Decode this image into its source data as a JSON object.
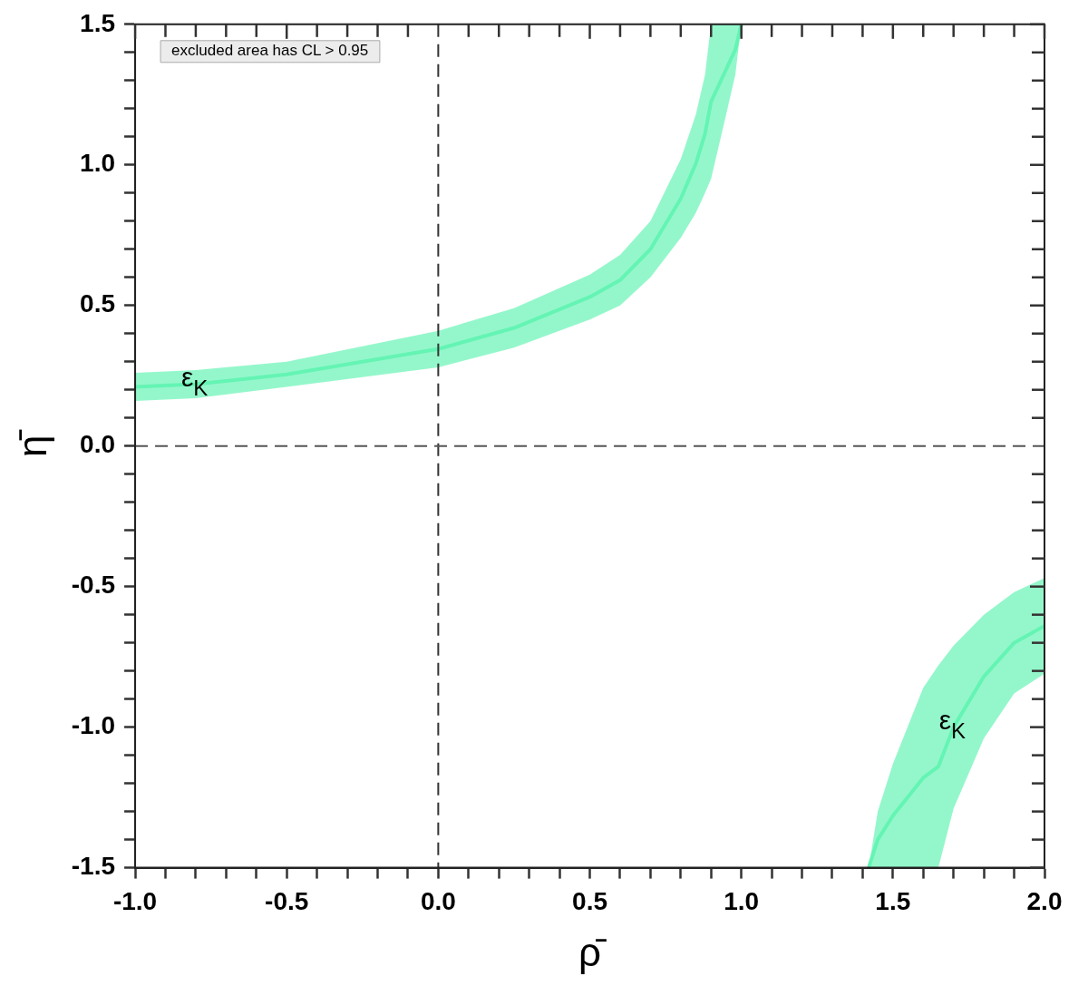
{
  "chart_data": {
    "type": "line",
    "xlabel": "ρ̄",
    "ylabel": "η̄",
    "xlim": [
      -1,
      2
    ],
    "ylim": [
      -1.5,
      1.5
    ],
    "xticks": [
      {
        "value": -1,
        "label": "-1.0"
      },
      {
        "value": -0.9,
        "label": null
      },
      {
        "value": -0.8,
        "label": null
      },
      {
        "value": -0.7,
        "label": null
      },
      {
        "value": -0.6,
        "label": null
      },
      {
        "value": -0.5,
        "label": "-0.5"
      },
      {
        "value": -0.4,
        "label": null
      },
      {
        "value": -0.3,
        "label": null
      },
      {
        "value": -0.2,
        "label": null
      },
      {
        "value": -0.1,
        "label": null
      },
      {
        "value": 0,
        "label": "0.0"
      },
      {
        "value": 0.1,
        "label": null
      },
      {
        "value": 0.2,
        "label": null
      },
      {
        "value": 0.3,
        "label": null
      },
      {
        "value": 0.4,
        "label": null
      },
      {
        "value": 0.5,
        "label": "0.5"
      },
      {
        "value": 0.6,
        "label": null
      },
      {
        "value": 0.7,
        "label": null
      },
      {
        "value": 0.8,
        "label": null
      },
      {
        "value": 0.9,
        "label": null
      },
      {
        "value": 1,
        "label": "1.0"
      },
      {
        "value": 1.1,
        "label": null
      },
      {
        "value": 1.2,
        "label": null
      },
      {
        "value": 1.3,
        "label": null
      },
      {
        "value": 1.4,
        "label": null
      },
      {
        "value": 1.5,
        "label": "1.5"
      },
      {
        "value": 1.6,
        "label": null
      },
      {
        "value": 1.7,
        "label": null
      },
      {
        "value": 1.8,
        "label": null
      },
      {
        "value": 1.9,
        "label": null
      },
      {
        "value": 2,
        "label": "2.0"
      }
    ],
    "yticks": [
      {
        "value": -1.5,
        "label": "-1.5"
      },
      {
        "value": -1.4,
        "label": null
      },
      {
        "value": -1.3,
        "label": null
      },
      {
        "value": -1.2,
        "label": null
      },
      {
        "value": -1.1,
        "label": null
      },
      {
        "value": -1,
        "label": "-1.0"
      },
      {
        "value": -0.9,
        "label": null
      },
      {
        "value": -0.8,
        "label": null
      },
      {
        "value": -0.7,
        "label": null
      },
      {
        "value": -0.6,
        "label": null
      },
      {
        "value": -0.5,
        "label": "-0.5"
      },
      {
        "value": -0.4,
        "label": null
      },
      {
        "value": -0.3,
        "label": null
      },
      {
        "value": -0.2,
        "label": null
      },
      {
        "value": -0.1,
        "label": null
      },
      {
        "value": 0,
        "label": "0.0"
      },
      {
        "value": 0.1,
        "label": null
      },
      {
        "value": 0.2,
        "label": null
      },
      {
        "value": 0.3,
        "label": null
      },
      {
        "value": 0.4,
        "label": null
      },
      {
        "value": 0.5,
        "label": "0.5"
      },
      {
        "value": 0.6,
        "label": null
      },
      {
        "value": 0.7,
        "label": null
      },
      {
        "value": 0.8,
        "label": null
      },
      {
        "value": 0.9,
        "label": null
      },
      {
        "value": 1,
        "label": "1.0"
      },
      {
        "value": 1.1,
        "label": null
      },
      {
        "value": 1.2,
        "label": null
      },
      {
        "value": 1.3,
        "label": null
      },
      {
        "value": 1.4,
        "label": null
      },
      {
        "value": 1.5,
        "label": "1.5"
      }
    ],
    "series": [
      {
        "color": "#64f4b4",
        "x": [
          -1,
          -0.8,
          -0.5,
          0,
          0.25,
          0.5,
          0.6,
          0.7,
          0.8,
          0.85,
          0.88,
          0.9,
          0.95,
          0.98,
          1
        ],
        "values": [
          0.21,
          0.22,
          0.255,
          0.345,
          0.42,
          0.53,
          0.59,
          0.7,
          0.88,
          1.005,
          1.11,
          1.225,
          1.34,
          1.41,
          1.5
        ],
        "upper": [
          0.26,
          0.27,
          0.3,
          0.41,
          0.49,
          0.61,
          0.68,
          0.8,
          1.02,
          1.18,
          1.32,
          1.5,
          1.5,
          1.5,
          1.5
        ],
        "lower": [
          0.16,
          0.17,
          0.21,
          0.28,
          0.35,
          0.45,
          0.5,
          0.6,
          0.74,
          0.83,
          0.9,
          0.95,
          1.18,
          1.32,
          1.5
        ]
      },
      {
        "color": "#64f4b4",
        "x": [
          1.42,
          1.45,
          1.5,
          1.6,
          1.65,
          1.7,
          1.8,
          1.9,
          2
        ],
        "values": [
          -1.5,
          -1.4,
          -1.315,
          -1.18,
          -1.14,
          -1,
          -0.82,
          -0.7,
          -0.64
        ],
        "upper": [
          -1.5,
          -1.3,
          -1.13,
          -0.86,
          -0.78,
          -0.71,
          -0.6,
          -0.52,
          -0.47
        ],
        "lower": [
          -1.5,
          -1.5,
          -1.5,
          -1.5,
          -1.5,
          -1.29,
          -1.04,
          -0.88,
          -0.81
        ]
      }
    ],
    "ref_lines": [
      {
        "axis": "x",
        "value": 0,
        "color": "#333333",
        "line_style": "dashed"
      },
      {
        "axis": "y",
        "value": 0,
        "color": "#555555",
        "line_style": "dashed"
      }
    ],
    "annotations": [
      "excluded area has CL > 0.95",
      {
        "text": "ε$_{K}$",
        "x": -0.8,
        "y": 0.22
      },
      {
        "text": "ε$_{K}$",
        "x": 1.7,
        "y": -1
      }
    ],
    "grid": false,
    "legend": false
  }
}
